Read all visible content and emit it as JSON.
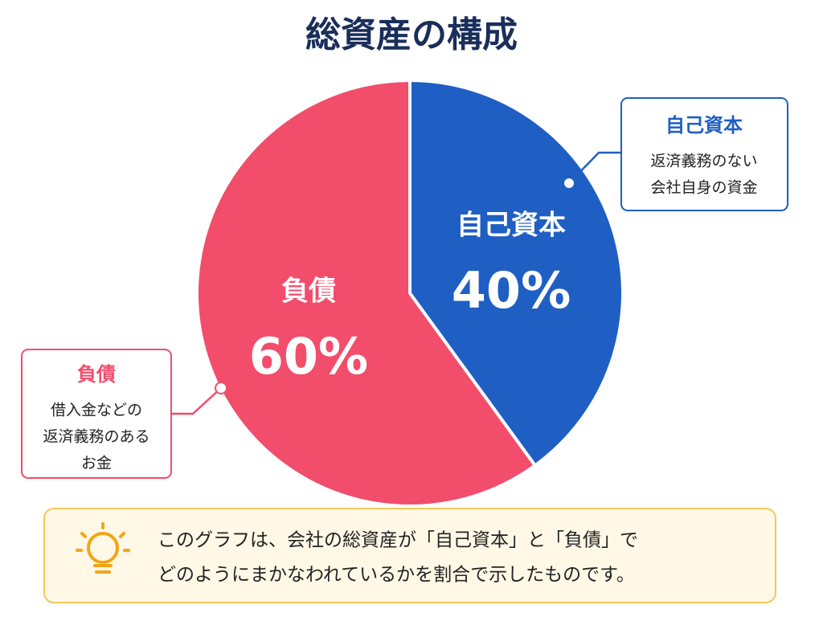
{
  "chart_data": {
    "type": "pie",
    "title": "総資産の構成",
    "categories": [
      "自己資本",
      "負債"
    ],
    "values": [
      40,
      60
    ],
    "value_labels": [
      "40%",
      "60%"
    ],
    "colors": [
      "#1f5fc4",
      "#f24d6b"
    ],
    "callouts": [
      {
        "title": "自己資本",
        "lines": [
          "返済義務のない",
          "会社自身の資金"
        ]
      },
      {
        "title": "負債",
        "lines": [
          "借入金などの",
          "返済義務のある",
          "お金"
        ]
      }
    ],
    "note": [
      "このグラフは、会社の総資産が「自己資本」と「負債」で",
      "どのようにまかなわれているかを割合で示したものです。"
    ]
  }
}
